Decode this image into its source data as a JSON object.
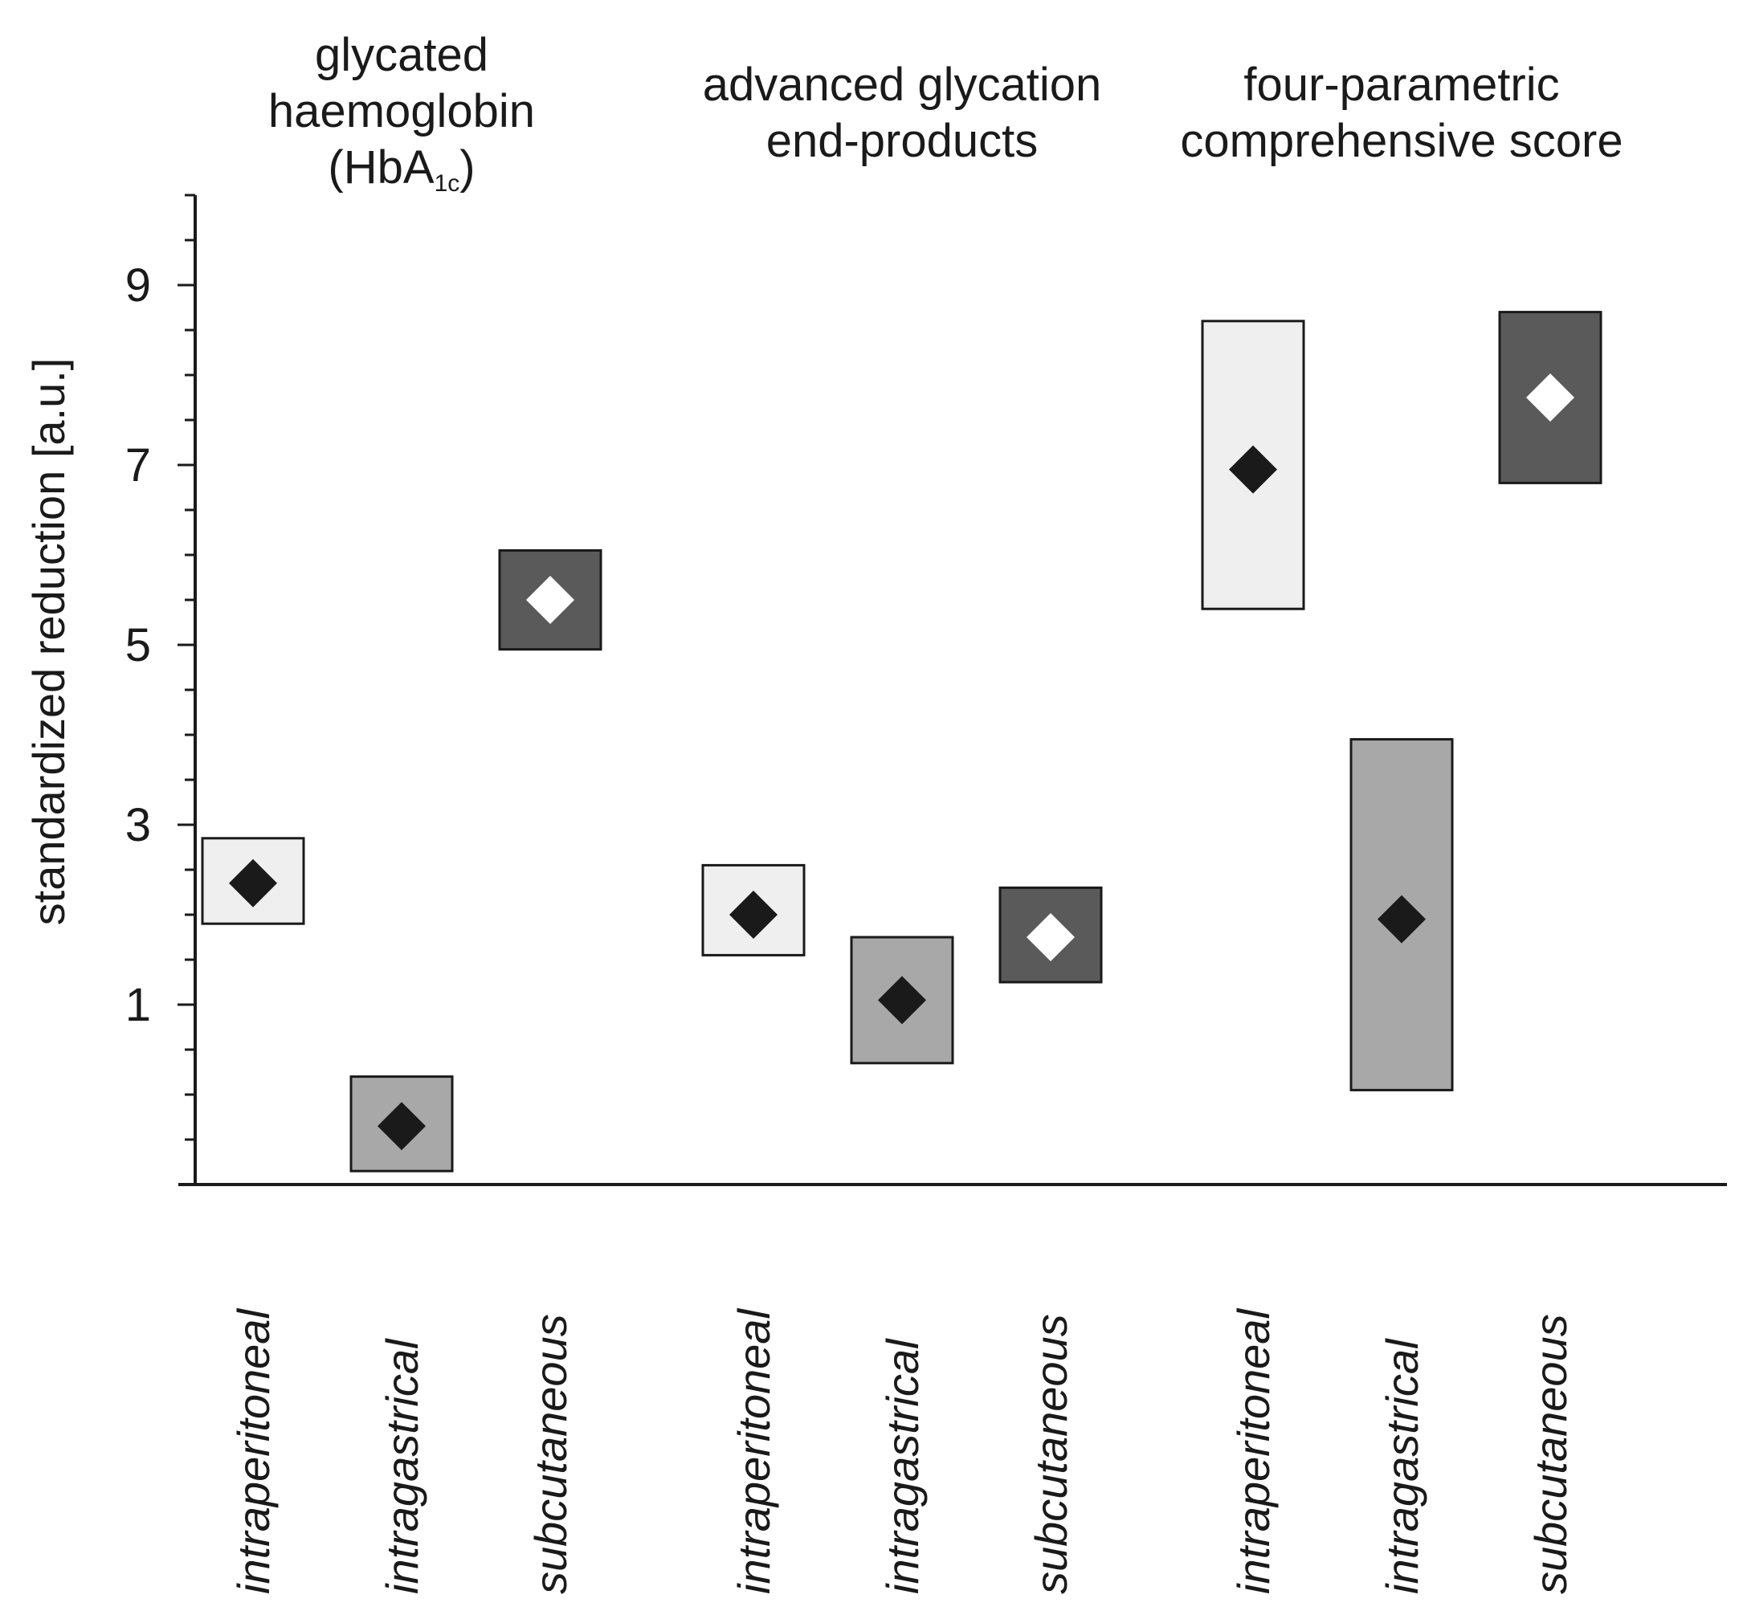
{
  "chart_data": {
    "type": "range-box",
    "ylabel": "standardized reduction [a.u.]",
    "ylim": [
      -1,
      10
    ],
    "yticks": [
      1,
      3,
      5,
      7,
      9
    ],
    "minor_tick_step": 0.5,
    "groups": [
      {
        "title_lines": [
          "glycated",
          "haemoglobin"
        ],
        "title_formula": {
          "open": "(HbA",
          "subscript": "1c",
          "close": ")"
        },
        "items": [
          {
            "category": "intraperitoneal",
            "low": 1.9,
            "high": 2.85,
            "mean": 2.35,
            "box_color": "#efefef",
            "marker_color": "#1a1a1a"
          },
          {
            "category": "intragastrical",
            "low": -0.85,
            "high": 0.2,
            "mean": -0.35,
            "box_color": "#a8a8a8",
            "marker_color": "#1a1a1a"
          },
          {
            "category": "subcutaneous",
            "low": 4.95,
            "high": 6.05,
            "mean": 5.5,
            "box_color": "#5a5a5a",
            "marker_color": "#ffffff"
          }
        ]
      },
      {
        "title_lines": [
          "advanced glycation",
          "end-products"
        ],
        "items": [
          {
            "category": "intraperitoneal",
            "low": 1.55,
            "high": 2.55,
            "mean": 2.0,
            "box_color": "#efefef",
            "marker_color": "#1a1a1a"
          },
          {
            "category": "intragastrical",
            "low": 0.35,
            "high": 1.75,
            "mean": 1.05,
            "box_color": "#a8a8a8",
            "marker_color": "#1a1a1a"
          },
          {
            "category": "subcutaneous",
            "low": 1.25,
            "high": 2.3,
            "mean": 1.75,
            "box_color": "#5a5a5a",
            "marker_color": "#ffffff"
          }
        ]
      },
      {
        "title_lines": [
          "four-parametric",
          "comprehensive score"
        ],
        "items": [
          {
            "category": "intraperitoneal",
            "low": 5.4,
            "high": 8.6,
            "mean": 6.95,
            "box_color": "#efefef",
            "marker_color": "#1a1a1a"
          },
          {
            "category": "intragastrical",
            "low": 0.05,
            "high": 3.95,
            "mean": 1.95,
            "box_color": "#a8a8a8",
            "marker_color": "#1a1a1a"
          },
          {
            "category": "subcutaneous",
            "low": 6.8,
            "high": 8.7,
            "mean": 7.75,
            "box_color": "#5a5a5a",
            "marker_color": "#ffffff"
          }
        ]
      }
    ]
  }
}
